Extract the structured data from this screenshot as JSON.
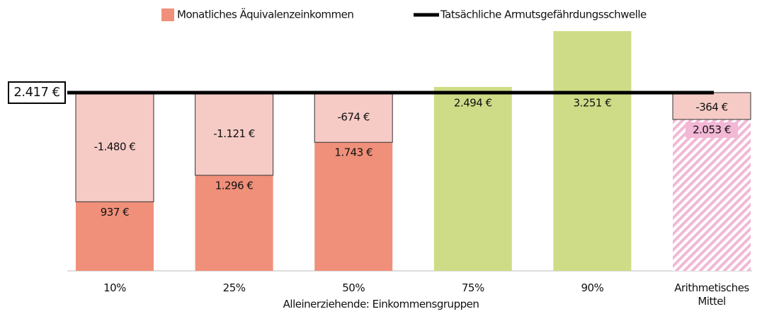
{
  "chart_data": {
    "type": "bar",
    "legend": [
      "Monatliches Äquivalenzeinkommen",
      "Tatsächliche Armutsgefährdungsschwelle"
    ],
    "x_label": "Alleinerziehende: Einkommensgruppen",
    "categories": [
      "10%",
      "25%",
      "50%",
      "75%",
      "90%",
      "Arithmetisches Mittel"
    ],
    "values": [
      937,
      1296,
      1743,
      2494,
      3251,
      2053
    ],
    "value_labels": [
      "937 €",
      "1.296 €",
      "1.743 €",
      "2.494 €",
      "3.251 €",
      "2.053 €"
    ],
    "gaps": [
      -1480,
      -1121,
      -674,
      null,
      null,
      -364
    ],
    "gap_labels": [
      "-1.480 €",
      "-1.121 €",
      "-674 €",
      null,
      null,
      "-364 €"
    ],
    "threshold": 2417,
    "threshold_label": "2.417 €",
    "colors": [
      "#f0907a",
      "#f0907a",
      "#f0907a",
      "#cfdc87",
      "#cfdc87",
      "#f2b8d6"
    ],
    "gap_color": "#f6cbc6",
    "ylim": [
      0,
      3500
    ]
  }
}
